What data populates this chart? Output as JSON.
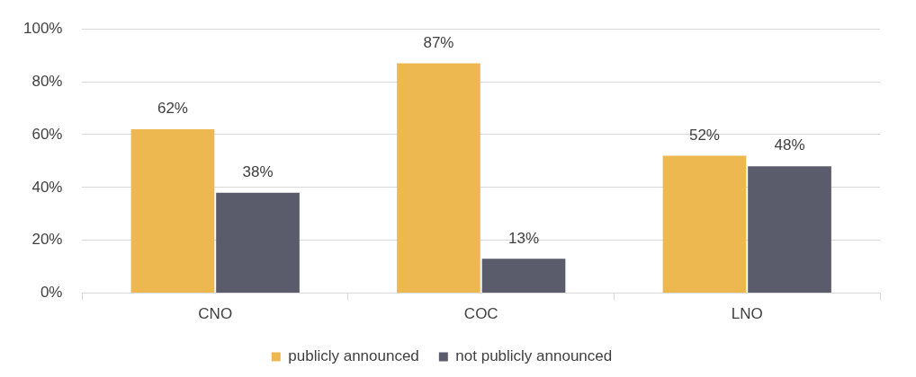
{
  "chart_data": {
    "type": "bar",
    "categories": [
      "CNO",
      "COC",
      "LNO"
    ],
    "series": [
      {
        "name": "publicly announced",
        "color": "#ecb84f",
        "values": [
          62,
          87,
          52
        ],
        "value_labels": [
          "62%",
          "87%",
          "52%"
        ]
      },
      {
        "name": "not publicly announced",
        "color": "#5b5c6b",
        "values": [
          38,
          13,
          48
        ],
        "value_labels": [
          "38%",
          "13%",
          "48%"
        ]
      }
    ],
    "ylim": [
      0,
      100
    ],
    "yticks": [
      {
        "value": 0,
        "label": "0%"
      },
      {
        "value": 20,
        "label": "20%"
      },
      {
        "value": 40,
        "label": "40%"
      },
      {
        "value": 60,
        "label": "60%"
      },
      {
        "value": 80,
        "label": "80%"
      },
      {
        "value": 100,
        "label": "100%"
      }
    ],
    "grid": "y",
    "legend": "bottom"
  }
}
